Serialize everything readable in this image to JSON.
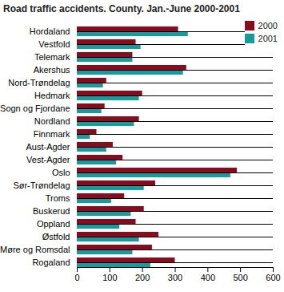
{
  "chart_data": {
    "type": "bar",
    "orientation": "horizontal",
    "title": "Road traffic accidents. County. Jan.-June 2000-2001",
    "categories": [
      "Hordaland",
      "Vestfold",
      "Telemark",
      "Akershus",
      "Nord-Trøndelag",
      "Hedmark",
      "Sogn og Fjordane",
      "Nordland",
      "Finnmark",
      "Aust-Agder",
      "Vest-Agder",
      "Oslo",
      "Sør-Trøndelag",
      "Troms",
      "Buskerud",
      "Oppland",
      "Østfold",
      "Møre og Romsdal",
      "Rogaland"
    ],
    "series": [
      {
        "name": "2000",
        "color": "#8b0a1e",
        "values": [
          310,
          180,
          170,
          335,
          90,
          200,
          85,
          190,
          60,
          110,
          140,
          490,
          240,
          145,
          205,
          180,
          250,
          230,
          300
        ]
      },
      {
        "name": "2001",
        "color": "#169c9c",
        "values": [
          340,
          195,
          170,
          325,
          80,
          190,
          75,
          175,
          40,
          90,
          120,
          470,
          205,
          105,
          165,
          130,
          190,
          170,
          225
        ]
      }
    ],
    "xlim": [
      0,
      600
    ],
    "xticks": [
      0,
      100,
      200,
      300,
      400,
      500,
      600
    ],
    "legend": "top-right",
    "grid": false
  }
}
